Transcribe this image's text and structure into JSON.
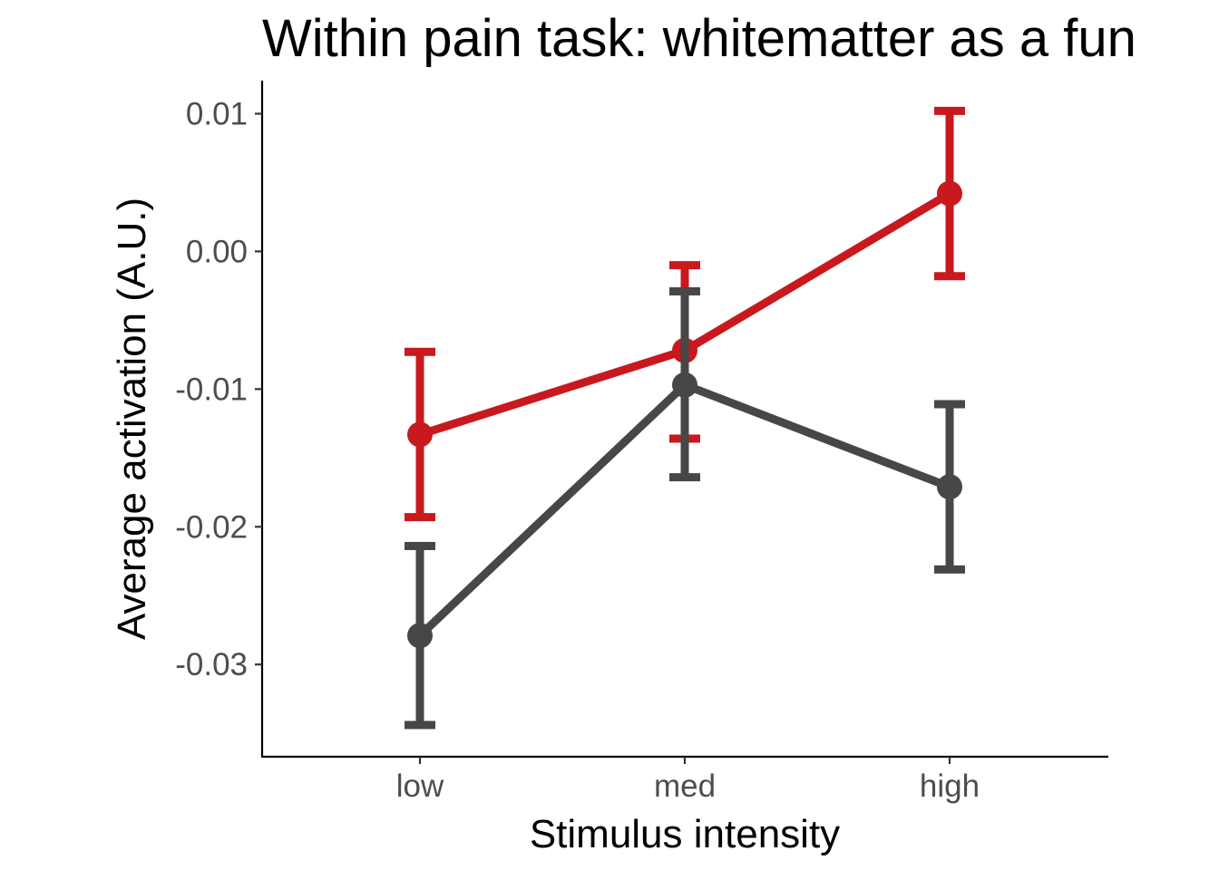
{
  "chart_data": {
    "type": "line",
    "title": "Within pain task: whitematter as a fun",
    "xlabel": "Stimulus intensity",
    "ylabel": "Average activation (A.U.)",
    "categories": [
      "low",
      "med",
      "high"
    ],
    "ylim": [
      -0.0367,
      0.0124
    ],
    "yticks": [
      0.01,
      0.0,
      -0.01,
      -0.02,
      -0.03
    ],
    "ytick_labels": [
      "0.01",
      "0.00",
      "-0.01",
      "-0.02",
      "-0.03"
    ],
    "grid": false,
    "legend": "none",
    "series": [
      {
        "color": "#c8191e",
        "values": [
          -0.0133,
          -0.0072,
          0.0042
        ],
        "error_low": [
          -0.0193,
          -0.0136,
          -0.0018
        ],
        "error_high": [
          -0.0073,
          -0.001,
          0.0102
        ]
      },
      {
        "color": "#474747",
        "values": [
          -0.0279,
          -0.0097,
          -0.0171
        ],
        "error_low": [
          -0.0344,
          -0.0164,
          -0.0231
        ],
        "error_high": [
          -0.0214,
          -0.0029,
          -0.0111
        ]
      }
    ]
  }
}
